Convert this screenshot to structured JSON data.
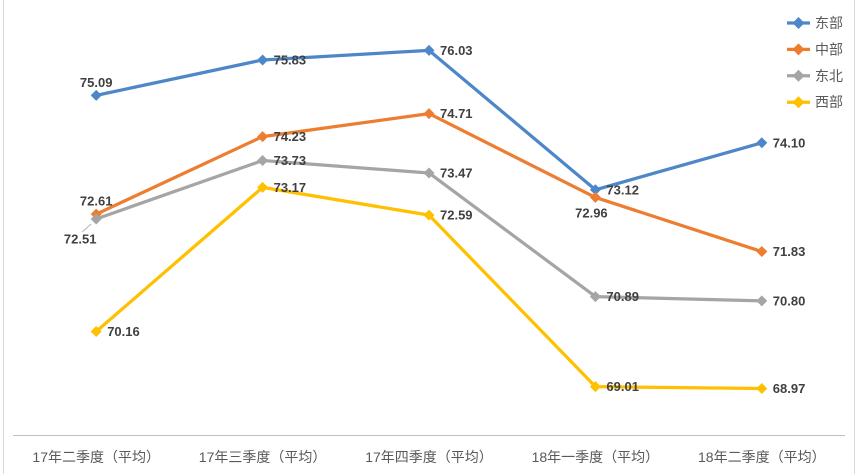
{
  "chart_data": {
    "type": "line",
    "title": "",
    "categories": [
      "17年二季度（平均）",
      "17年三季度（平均）",
      "17年四季度（平均）",
      "18年一季度（平均）",
      "18年二季度（平均）"
    ],
    "series": [
      {
        "name": "东部",
        "color": "#4E87C7",
        "values": [
          75.09,
          75.83,
          76.03,
          73.12,
          74.1
        ],
        "label_positions": [
          "above",
          "right",
          "right",
          "right",
          "right"
        ]
      },
      {
        "name": "中部",
        "color": "#ED7D31",
        "values": [
          72.61,
          74.23,
          74.71,
          72.96,
          71.83
        ],
        "label_positions": [
          "above",
          "right",
          "right",
          "below",
          "right"
        ]
      },
      {
        "name": "东北",
        "color": "#A5A5A5",
        "values": [
          72.51,
          73.73,
          73.47,
          70.89,
          70.8
        ],
        "label_positions": [
          "below-leader",
          "right",
          "right",
          "right",
          "right"
        ]
      },
      {
        "name": "西部",
        "color": "#FFC000",
        "values": [
          70.16,
          73.17,
          72.59,
          69.01,
          68.97
        ],
        "label_positions": [
          "right",
          "right",
          "right",
          "right",
          "right"
        ]
      }
    ],
    "marker": "diamond",
    "data_labels": true,
    "label_decimals": 2,
    "legend_position": "top-right",
    "grid": false,
    "xlabel": "",
    "ylabel": "",
    "y_min": 68,
    "y_axis_visible": false,
    "colors": {
      "background": "#FFFFFF",
      "axis_line": "#BFBFBF",
      "chart_border": "#D9D9D9",
      "data_label_text": "#404040",
      "axis_label_text": "#595959",
      "legend_text": "#595959",
      "leader_line": "#A6A6A6"
    }
  }
}
